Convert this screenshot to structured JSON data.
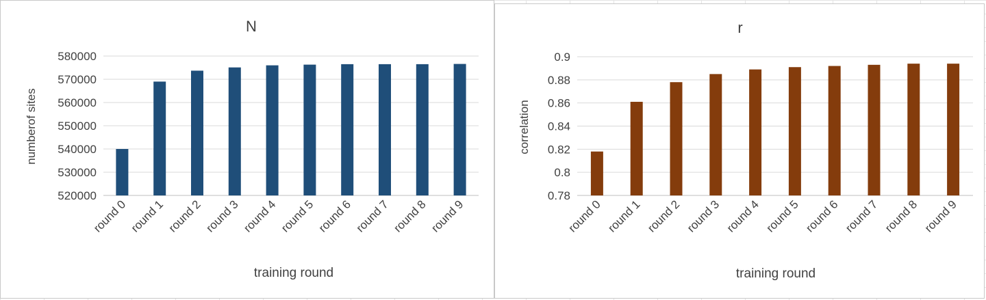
{
  "chart_data": [
    {
      "type": "bar",
      "title": "N",
      "xlabel": "training round",
      "ylabel": "numberof sites",
      "categories": [
        "round 0",
        "round 1",
        "round 2",
        "round 3",
        "round 4",
        "round 5",
        "round 6",
        "round 7",
        "round 8",
        "round 9"
      ],
      "series": [
        {
          "values": [
            540000,
            569000,
            573700,
            575100,
            576000,
            576300,
            576500,
            576500,
            576500,
            576600
          ]
        }
      ],
      "ylim": [
        520000,
        580000
      ],
      "yticks": [
        520000,
        530000,
        540000,
        550000,
        560000,
        570000,
        580000
      ],
      "ytick_labels": [
        "520000",
        "530000",
        "540000",
        "550000",
        "560000",
        "570000",
        "580000"
      ],
      "grid": true,
      "legend": "none",
      "color": "#1f4e79"
    },
    {
      "type": "bar",
      "title": "r",
      "xlabel": "training round",
      "ylabel": "correlation",
      "categories": [
        "round 0",
        "round 1",
        "round 2",
        "round 3",
        "round 4",
        "round 5",
        "round 6",
        "round 7",
        "round 8",
        "round 9"
      ],
      "series": [
        {
          "values": [
            0.818,
            0.861,
            0.878,
            0.885,
            0.889,
            0.891,
            0.892,
            0.893,
            0.894,
            0.894
          ]
        }
      ],
      "ylim": [
        0.78,
        0.9
      ],
      "yticks": [
        0.78,
        0.8,
        0.82,
        0.84,
        0.86,
        0.88,
        0.9
      ],
      "ytick_labels": [
        "0.78",
        "0.8",
        "0.82",
        "0.84",
        "0.86",
        "0.88",
        "0.9"
      ],
      "grid": true,
      "legend": "none",
      "color": "#843c0c"
    }
  ]
}
